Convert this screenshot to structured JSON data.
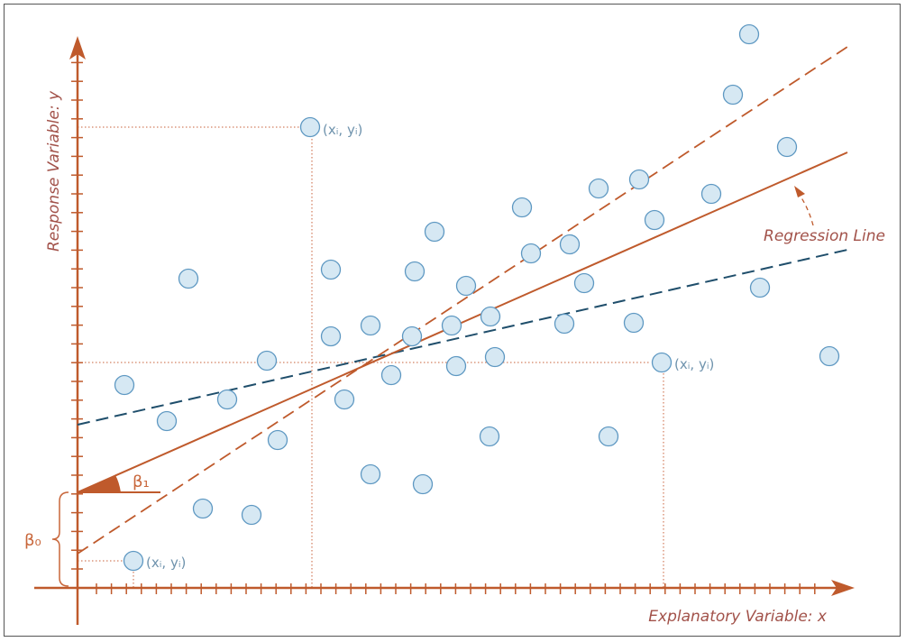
{
  "colors": {
    "axis": "#bf5a2c",
    "point_fill": "#d6e8f3",
    "point_stroke": "#5e98c2",
    "regression": "#bf5a2c",
    "steep_dashed": "#bf5a2c",
    "flat_dashed": "#1f4e6b",
    "guide": "#c8603a",
    "text_red": "#a2524a",
    "text_blue": "#6f93ad"
  },
  "labels": {
    "x_axis": "Explanatory Variable: x",
    "y_axis": "Response Variable: y",
    "regression_line": "Regression Line",
    "beta0": "β₀",
    "beta1": "β₁",
    "point_label_1": "(xᵢ,  yᵢ)",
    "point_label_2": "(xᵢ,  yᵢ)",
    "point_label_3": "(xᵢ,  yᵢ)"
  },
  "points": [
    [
      138,
      427
    ],
    [
      185,
      467
    ],
    [
      209,
      309
    ],
    [
      225,
      564
    ],
    [
      252,
      443
    ],
    [
      279,
      571
    ],
    [
      296,
      400
    ],
    [
      308,
      488
    ],
    [
      344,
      141
    ],
    [
      367,
      299
    ],
    [
      367,
      373
    ],
    [
      382,
      443
    ],
    [
      411,
      361
    ],
    [
      411,
      526
    ],
    [
      434,
      416
    ],
    [
      457,
      373
    ],
    [
      460,
      301
    ],
    [
      469,
      537
    ],
    [
      482,
      257
    ],
    [
      501,
      361
    ],
    [
      506,
      406
    ],
    [
      517,
      317
    ],
    [
      544,
      351
    ],
    [
      543,
      484
    ],
    [
      549,
      396
    ],
    [
      579,
      230
    ],
    [
      589,
      281
    ],
    [
      626,
      359
    ],
    [
      632,
      271
    ],
    [
      648,
      314
    ],
    [
      664,
      209
    ],
    [
      675,
      484
    ],
    [
      703,
      358
    ],
    [
      709,
      199
    ],
    [
      726,
      244
    ],
    [
      734,
      402
    ],
    [
      789,
      215
    ],
    [
      813,
      105
    ],
    [
      831,
      38
    ],
    [
      843,
      319
    ],
    [
      873,
      163
    ],
    [
      920,
      395
    ],
    [
      148,
      622
    ]
  ]
}
